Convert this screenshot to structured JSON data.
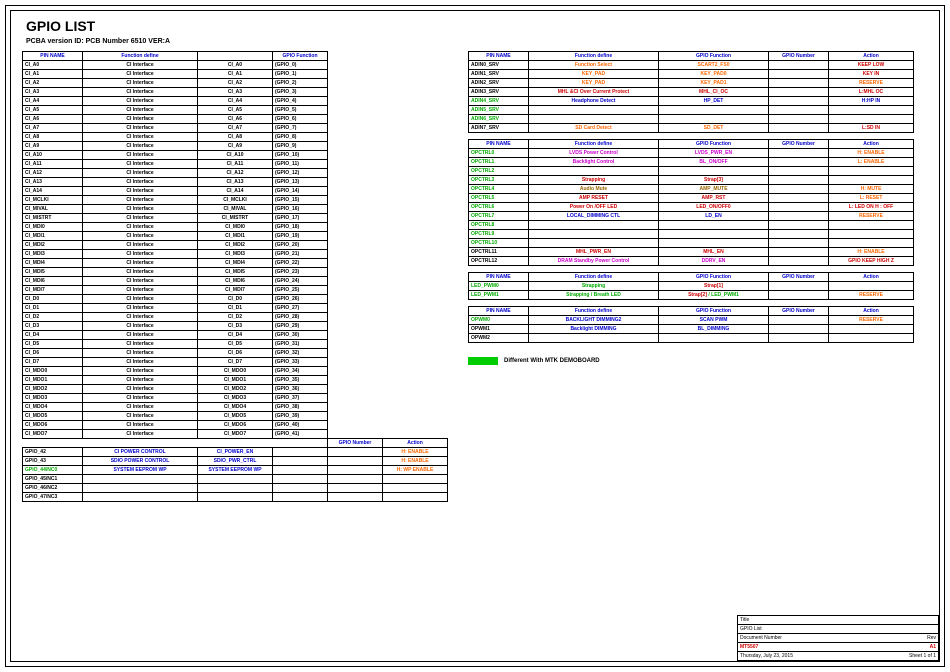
{
  "header": {
    "title": "GPIO LIST",
    "subtitle": "PCBA version ID: PCB Number 6510 VER:A"
  },
  "colors": {
    "header": "#0000cc",
    "black": "#000000",
    "blue": "#0000cc",
    "orange": "#ff6600",
    "green": "#00aa00",
    "red": "#cc0000",
    "magenta": "#cc00cc",
    "brown": "#996600"
  },
  "leftTable": {
    "headers": [
      "PIN NAME",
      "Function define",
      "",
      "GPIO Function",
      "GPIO Number",
      "Action"
    ],
    "widths": [
      55,
      110,
      70,
      50,
      50,
      60
    ],
    "showExtraFrom": 42,
    "rows": [
      {
        "c": [
          "CI_A0",
          "CI Interface",
          "CI_A0",
          "(GPIO_0)"
        ],
        "colC": "#000"
      },
      {
        "c": [
          "CI_A1",
          "CI Interface",
          "CI_A1",
          "(GPIO_1)"
        ],
        "colC": "#000"
      },
      {
        "c": [
          "CI_A2",
          "CI Interface",
          "CI_A2",
          "(GPIO_2)"
        ],
        "colC": "#000"
      },
      {
        "c": [
          "CI_A3",
          "CI Interface",
          "CI_A3",
          "(GPIO_3)"
        ],
        "colC": "#000"
      },
      {
        "c": [
          "CI_A4",
          "CI Interface",
          "CI_A4",
          "(GPIO_4)"
        ],
        "colC": "#000"
      },
      {
        "c": [
          "CI_A5",
          "CI Interface",
          "CI_A5",
          "(GPIO_5)"
        ],
        "colC": "#000"
      },
      {
        "c": [
          "CI_A6",
          "CI Interface",
          "CI_A6",
          "(GPIO_6)"
        ],
        "colC": "#000"
      },
      {
        "c": [
          "CI_A7",
          "CI Interface",
          "CI_A7",
          "(GPIO_7)"
        ],
        "colC": "#000"
      },
      {
        "c": [
          "CI_A8",
          "CI Interface",
          "CI_A8",
          "(GPIO_8)"
        ],
        "colC": "#000"
      },
      {
        "c": [
          "CI_A9",
          "CI Interface",
          "CI_A9",
          "(GPIO_9)"
        ],
        "colC": "#000"
      },
      {
        "c": [
          "CI_A10",
          "CI Interface",
          "CI_A10",
          "(GPIO_10)"
        ],
        "colC": "#000"
      },
      {
        "c": [
          "CI_A11",
          "CI Interface",
          "CI_A11",
          "(GPIO_11)"
        ],
        "colC": "#000"
      },
      {
        "c": [
          "CI_A12",
          "CI Interface",
          "CI_A12",
          "(GPIO_12)"
        ],
        "colC": "#000"
      },
      {
        "c": [
          "CI_A13",
          "CI Interface",
          "CI_A13",
          "(GPIO_13)"
        ],
        "colC": "#000"
      },
      {
        "c": [
          "CI_A14",
          "CI Interface",
          "CI_A14",
          "(GPIO_14)"
        ],
        "colC": "#000"
      },
      {
        "c": [
          "CI_MCLKI",
          "CI Interface",
          "CI_MCLKI",
          "(GPIO_15)"
        ],
        "colC": "#000"
      },
      {
        "c": [
          "CI_MIVAL",
          "CI Interface",
          "CI_MIVAL",
          "(GPIO_16)"
        ],
        "colC": "#000"
      },
      {
        "c": [
          "CI_MISTRT",
          "CI Interface",
          "CI_MISTRT",
          "(GPIO_17)"
        ],
        "colC": "#000"
      },
      {
        "c": [
          "CI_MDI0",
          "CI Interface",
          "CI_MDI0",
          "(GPIO_18)"
        ],
        "colC": "#000"
      },
      {
        "c": [
          "CI_MDI1",
          "CI Interface",
          "CI_MDI1",
          "(GPIO_19)"
        ],
        "colC": "#000"
      },
      {
        "c": [
          "CI_MDI2",
          "CI Interface",
          "CI_MDI2",
          "(GPIO_20)"
        ],
        "colC": "#000"
      },
      {
        "c": [
          "CI_MDI3",
          "CI Interface",
          "CI_MDI3",
          "(GPIO_21)"
        ],
        "colC": "#000"
      },
      {
        "c": [
          "CI_MDI4",
          "CI Interface",
          "CI_MDI4",
          "(GPIO_22)"
        ],
        "colC": "#000"
      },
      {
        "c": [
          "CI_MDI5",
          "CI Interface",
          "CI_MDI5",
          "(GPIO_23)"
        ],
        "colC": "#000"
      },
      {
        "c": [
          "CI_MDI6",
          "CI Interface",
          "CI_MDI6",
          "(GPIO_24)"
        ],
        "colC": "#000"
      },
      {
        "c": [
          "CI_MDI7",
          "CI Interface",
          "CI_MDI7",
          "(GPIO_25)"
        ],
        "colC": "#000"
      },
      {
        "c": [
          "CI_D0",
          "CI Interface",
          "CI_D0",
          "(GPIO_26)"
        ],
        "colC": "#000"
      },
      {
        "c": [
          "CI_D1",
          "CI Interface",
          "CI_D1",
          "(GPIO_27)"
        ],
        "colC": "#000"
      },
      {
        "c": [
          "CI_D2",
          "CI Interface",
          "CI_D2",
          "(GPIO_28)"
        ],
        "colC": "#000"
      },
      {
        "c": [
          "CI_D3",
          "CI Interface",
          "CI_D3",
          "(GPIO_29)"
        ],
        "colC": "#000"
      },
      {
        "c": [
          "CI_D4",
          "CI Interface",
          "CI_D4",
          "(GPIO_30)"
        ],
        "colC": "#000"
      },
      {
        "c": [
          "CI_D5",
          "CI Interface",
          "CI_D5",
          "(GPIO_31)"
        ],
        "colC": "#000"
      },
      {
        "c": [
          "CI_D6",
          "CI Interface",
          "CI_D6",
          "(GPIO_32)"
        ],
        "colC": "#000"
      },
      {
        "c": [
          "CI_D7",
          "CI Interface",
          "CI_D7",
          "(GPIO_33)"
        ],
        "colC": "#000"
      },
      {
        "c": [
          "CI_MDO0",
          "CI Interface",
          "CI_MDO0",
          "(GPIO_34)"
        ],
        "colC": "#000"
      },
      {
        "c": [
          "CI_MDO1",
          "CI Interface",
          "CI_MDO1",
          "(GPIO_35)"
        ],
        "colC": "#000"
      },
      {
        "c": [
          "CI_MDO2",
          "CI Interface",
          "CI_MDO2",
          "(GPIO_36)"
        ],
        "colC": "#000"
      },
      {
        "c": [
          "CI_MDO3",
          "CI Interface",
          "CI_MDO3",
          "(GPIO_37)"
        ],
        "colC": "#000"
      },
      {
        "c": [
          "CI_MDO4",
          "CI Interface",
          "CI_MDO4",
          "(GPIO_38)"
        ],
        "colC": "#000"
      },
      {
        "c": [
          "CI_MDO5",
          "CI Interface",
          "CI_MDO5",
          "(GPIO_39)"
        ],
        "colC": "#000"
      },
      {
        "c": [
          "CI_MDO6",
          "CI Interface",
          "CI_MDO6",
          "(GPIO_40)"
        ],
        "colC": "#000"
      },
      {
        "c": [
          "CI_MDO7",
          "CI Interface",
          "CI_MDO7",
          "(GPIO_41)"
        ],
        "colC": "#000"
      },
      {
        "c": [
          "GPIO_42",
          "CI POWER CONTROL",
          "CI_POWER_EN",
          "",
          "",
          "H: ENABLE"
        ],
        "pinC": "#000",
        "fnC": "#0000cc",
        "gfC": "#0000cc",
        "actC": "#ff6600"
      },
      {
        "c": [
          "GPIO_43",
          "SDIO POWER CONTROL",
          "SDIO_PWR_CTRL",
          "",
          "",
          "H: ENABLE"
        ],
        "pinC": "#000",
        "fnC": "#0000cc",
        "gfC": "#0000cc",
        "actC": "#ff6600"
      },
      {
        "c": [
          "GPIO_44/NC0",
          "SYSTEM EEPROM WP",
          "SYSTEM EEPROM WP",
          "",
          "",
          "H: WP ENABLE"
        ],
        "pinC": "#00aa00",
        "fnC": "#0000cc",
        "gfC": "#0000cc",
        "actC": "#ff6600"
      },
      {
        "c": [
          "GPIO_45/NC1",
          "",
          "",
          "",
          "",
          ""
        ],
        "pinC": "#000"
      },
      {
        "c": [
          "GPIO_46/NC2",
          "",
          "",
          "",
          "",
          ""
        ],
        "pinC": "#000"
      },
      {
        "c": [
          "GPIO_47/NC3",
          "",
          "",
          "",
          "",
          ""
        ],
        "pinC": "#000"
      }
    ]
  },
  "rightTables": [
    {
      "headers": [
        "PIN NAME",
        "Function define",
        "GPIO Function",
        "GPIO Number",
        "Action"
      ],
      "widths": [
        55,
        125,
        105,
        55,
        80
      ],
      "rows": [
        {
          "c": [
            "ADIN0_SRV",
            "Function Select",
            "SCART2_FS0",
            "",
            "KEEP LOW"
          ],
          "pinC": "#000",
          "fnC": "#ff6600",
          "gfC": "#ff6600",
          "actC": "#cc0000"
        },
        {
          "c": [
            "ADIN1_SRV",
            "KEY_PAD",
            "KEY_PAD0",
            "",
            "KEY IN"
          ],
          "pinC": "#000",
          "fnC": "#ff6600",
          "gfC": "#ff6600",
          "actC": "#cc0000"
        },
        {
          "c": [
            "ADIN2_SRV",
            "KEY_PAD",
            "KEY_PAD1",
            "",
            "RESERVE"
          ],
          "pinC": "#000",
          "fnC": "#ff6600",
          "gfC": "#ff6600",
          "actC": "#ff6600"
        },
        {
          "c": [
            "ADIN3_SRV",
            "MHL &CI  Over Current Protect",
            "MHL_CI_OC",
            "",
            "L:MHL OC"
          ],
          "pinC": "#000",
          "fnC": "#cc0000",
          "gfC": "#cc0000",
          "actC": "#cc0000"
        },
        {
          "c": [
            "ADIN4_SRV",
            "Headphone Detect",
            "HP_DET",
            "",
            "H:HP IN"
          ],
          "pinC": "#00aa00",
          "fnC": "#0000cc",
          "gfC": "#0000cc",
          "actC": "#0000cc"
        },
        {
          "c": [
            "ADIN5_SRV",
            "",
            "",
            "",
            ""
          ],
          "pinC": "#00aa00"
        },
        {
          "c": [
            "ADIN6_SRV",
            "",
            "",
            "",
            ""
          ],
          "pinC": "#00aa00"
        },
        {
          "c": [
            "ADIN7_SRV",
            "SD Card Detect",
            "SD_DET",
            "",
            "L:SD IN"
          ],
          "pinC": "#000",
          "fnC": "#ff6600",
          "gfC": "#ff6600",
          "actC": "#cc0000"
        }
      ]
    },
    {
      "headers": [
        "PIN NAME",
        "Function define",
        "GPIO Function",
        "GPIO Number",
        "Action"
      ],
      "widths": [
        55,
        125,
        105,
        55,
        80
      ],
      "rows": [
        {
          "c": [
            "OPCTRL0",
            "LVDS Power Control",
            "LVDS_PWR_EN",
            "",
            "H: ENABLE"
          ],
          "pinC": "#00aa00",
          "fnC": "#cc00cc",
          "gfC": "#cc00cc",
          "actC": "#ff6600"
        },
        {
          "c": [
            "OPCTRL1",
            "Backlight Control",
            "BL_ON/OFF",
            "",
            "L: ENABLE"
          ],
          "pinC": "#00aa00",
          "fnC": "#cc00cc",
          "gfC": "#cc00cc",
          "actC": "#ff6600"
        },
        {
          "c": [
            "OPCTRL2",
            "",
            "",
            "",
            ""
          ],
          "pinC": "#00aa00"
        },
        {
          "c": [
            "OPCTRL3",
            "Strapping",
            "Strap[3]",
            "",
            ""
          ],
          "pinC": "#00aa00",
          "fnC": "#cc0000",
          "gfC": "#cc0000"
        },
        {
          "c": [
            "OPCTRL4",
            "Audio Mute",
            "AMP_MUTE",
            "",
            "H: MUTE"
          ],
          "pinC": "#00aa00",
          "fnC": "#996600",
          "gfC": "#996600",
          "actC": "#ff6600"
        },
        {
          "c": [
            "OPCTRL5",
            "AMP RESET",
            "AMP_RST",
            "",
            "L: RESET"
          ],
          "pinC": "#00aa00",
          "fnC": "#cc0000",
          "gfC": "#cc0000",
          "actC": "#ff6600"
        },
        {
          "c": [
            "OPCTRL6",
            "Power On /OFF LED",
            "LED_ON/OFF0",
            "",
            "L: LED ON   H : OFF"
          ],
          "pinC": "#00aa00",
          "fnC": "#cc0000",
          "gfC": "#cc0000",
          "actC": "#cc0000"
        },
        {
          "c": [
            "OPCTRL7",
            "LOCAL_DIMMING CTL",
            "LD_EN",
            "",
            "RESERVE"
          ],
          "pinC": "#00aa00",
          "fnC": "#0000cc",
          "gfC": "#0000cc",
          "actC": "#ff6600"
        },
        {
          "c": [
            "OPCTRL8",
            "",
            "",
            "",
            ""
          ],
          "pinC": "#00aa00"
        },
        {
          "c": [
            "OPCTRL9",
            "",
            "",
            "",
            ""
          ],
          "pinC": "#00aa00"
        },
        {
          "c": [
            "OPCTRL10",
            "",
            "",
            "",
            ""
          ],
          "pinC": "#00aa00"
        },
        {
          "c": [
            "OPCTRL11",
            "MHL_PWR_EN",
            "MHL_EN",
            "",
            "H: ENABLE"
          ],
          "pinC": "#000",
          "fnC": "#cc0000",
          "gfC": "#cc0000",
          "actC": "#ff6600"
        },
        {
          "c": [
            "OPCTRL12",
            "DRAM Standby Power Control",
            "DDRV_EN",
            "",
            "GPIO KEEP HIGH Z"
          ],
          "pinC": "#000",
          "fnC": "#cc00cc",
          "gfC": "#cc00cc",
          "actC": "#cc0000"
        }
      ]
    },
    {
      "headers": [
        "PIN NAME",
        "Function define",
        "GPIO Function",
        "GPIO Number",
        "Action"
      ],
      "widths": [
        55,
        125,
        105,
        55,
        80
      ],
      "rows": [
        {
          "c": [
            "LED_PWM0",
            "Strapping",
            "Strap[1]",
            "",
            ""
          ],
          "pinC": "#00aa00",
          "fnC": "#00aa00",
          "gfC": "#cc0000"
        },
        {
          "c": [
            "LED_PWM1",
            "Strapping / Breath  LED",
            "Strap[2] / LED_PWM1",
            "",
            "RESERVE"
          ],
          "pinC": "#00aa00",
          "fnC": "#00aa00",
          "gfC": "#cc0000",
          "actC": "#ff6600"
        }
      ]
    },
    {
      "headers": [
        "PIN NAME",
        "Function define",
        "GPIO Function",
        "GPIO Number",
        "Action"
      ],
      "widths": [
        55,
        125,
        105,
        55,
        80
      ],
      "rows": [
        {
          "c": [
            "OPWM0",
            "BACKLIGHT DIMMING2",
            "SCAN PWM",
            "",
            "RESERVE"
          ],
          "pinC": "#00aa00",
          "fnC": "#0000cc",
          "gfC": "#0000cc",
          "actC": "#ff6600"
        },
        {
          "c": [
            "OPWM1",
            "Backlight DIMMING",
            "BL_DIMMING",
            "",
            ""
          ],
          "pinC": "#000",
          "fnC": "#0000cc",
          "gfC": "#0000cc"
        },
        {
          "c": [
            "OPWM2",
            "",
            "",
            "",
            ""
          ],
          "pinC": "#000"
        }
      ]
    }
  ],
  "legend": {
    "text": "Different  With  MTK DEMOBOARD",
    "color": "#00cc00"
  },
  "titleblock": {
    "title": "GPIO List",
    "doclabel": "Document Number",
    "docnum": "MT5507",
    "rev": "A1",
    "date": "Thursday, July 23, 2015",
    "sheet": "Sheet    1    of    1"
  }
}
